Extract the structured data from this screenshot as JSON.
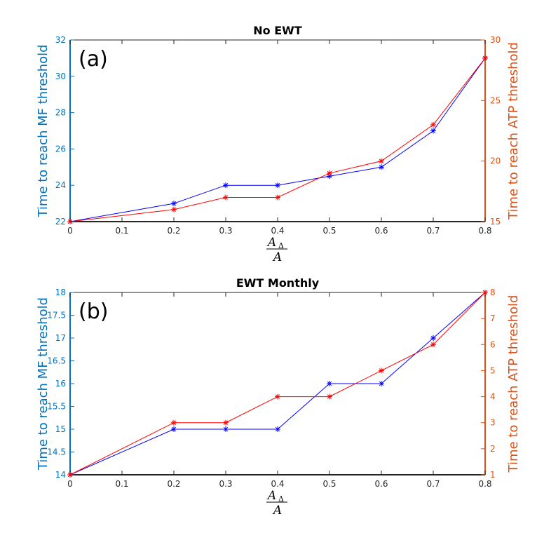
{
  "colors": {
    "left_axis": "#0072bd",
    "right_axis": "#d95319",
    "mf_series": "#0000ff",
    "atp_series": "#ff0000"
  },
  "chart_data": [
    {
      "type": "line",
      "title": "No EWT",
      "panel_label": "(a)",
      "xlabel": {
        "num": "A",
        "sub": "Δ",
        "den": "A"
      },
      "ylabel_left": "Time to reach MF threshold",
      "ylabel_right": "Time to reach ATP threshold",
      "xlim": [
        0,
        0.8
      ],
      "ylim_left": [
        22,
        32
      ],
      "ylim_right": [
        15,
        30
      ],
      "xticks": [
        "0",
        "0.1",
        "0.2",
        "0.3",
        "0.4",
        "0.5",
        "0.6",
        "0.7",
        "0.8"
      ],
      "yticks_left": [
        "22",
        "24",
        "26",
        "28",
        "30",
        "32"
      ],
      "yticks_right": [
        "15",
        "20",
        "25",
        "30"
      ],
      "x": [
        0,
        0.2,
        0.3,
        0.4,
        0.5,
        0.6,
        0.7,
        0.8
      ],
      "series": [
        {
          "axis": "left",
          "marker": "*",
          "color": "#0000ff",
          "values": [
            22,
            23,
            24,
            24,
            24.5,
            25,
            27,
            31
          ]
        },
        {
          "axis": "right",
          "marker": "*",
          "color": "#ff0000",
          "values": [
            15,
            16,
            17,
            17,
            19,
            20,
            23,
            28.5
          ]
        }
      ]
    },
    {
      "type": "line",
      "title": "EWT Monthly",
      "panel_label": "(b)",
      "xlabel": {
        "num": "A",
        "sub": "Δ",
        "den": "A"
      },
      "ylabel_left": "Time to reach MF threshold",
      "ylabel_right": "Time to reach ATP threshold",
      "xlim": [
        0,
        0.8
      ],
      "ylim_left": [
        14,
        18
      ],
      "ylim_right": [
        1,
        8
      ],
      "xticks": [
        "0",
        "0.1",
        "0.2",
        "0.3",
        "0.4",
        "0.5",
        "0.6",
        "0.7",
        "0.8"
      ],
      "yticks_left": [
        "14",
        "14.5",
        "15",
        "15.5",
        "16",
        "16.5",
        "17",
        "17.5",
        "18"
      ],
      "yticks_right": [
        "1",
        "2",
        "3",
        "4",
        "5",
        "6",
        "7",
        "8"
      ],
      "x": [
        0,
        0.2,
        0.3,
        0.4,
        0.5,
        0.6,
        0.7,
        0.8
      ],
      "series": [
        {
          "axis": "left",
          "marker": "*",
          "color": "#0000ff",
          "values": [
            14,
            15,
            15,
            15,
            16,
            16,
            17,
            18
          ]
        },
        {
          "axis": "right",
          "marker": "*",
          "color": "#ff0000",
          "values": [
            1,
            3,
            3,
            4,
            4,
            5,
            6,
            8
          ]
        }
      ]
    }
  ]
}
